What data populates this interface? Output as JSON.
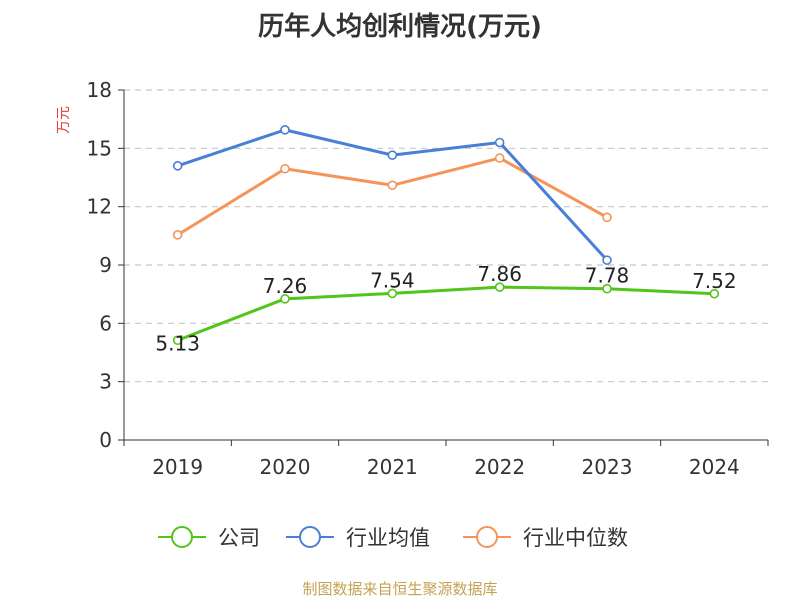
{
  "chart_data": {
    "type": "line",
    "title": "历年人均创利情况(万元)",
    "ylabel": "万元",
    "categories": [
      "2019",
      "2020",
      "2021",
      "2022",
      "2023",
      "2024"
    ],
    "ylim": [
      0,
      18
    ],
    "yticks": [
      0,
      3,
      6,
      9,
      12,
      15,
      18
    ],
    "grid": true,
    "legend_position": "bottom",
    "series": [
      {
        "name": "公司",
        "color": "#52c41a",
        "values": [
          5.13,
          7.26,
          7.54,
          7.86,
          7.78,
          7.52
        ],
        "labels": [
          "5.13",
          "7.26",
          "7.54",
          "7.86",
          "7.78",
          "7.52"
        ]
      },
      {
        "name": "行业均值",
        "color": "#4a7fd6",
        "values": [
          14.1,
          15.95,
          14.65,
          15.3,
          9.25,
          null
        ]
      },
      {
        "name": "行业中位数",
        "color": "#f5935a",
        "values": [
          10.55,
          13.95,
          13.1,
          14.5,
          11.45,
          null
        ]
      }
    ]
  },
  "source_note": "制图数据来自恒生聚源数据库"
}
